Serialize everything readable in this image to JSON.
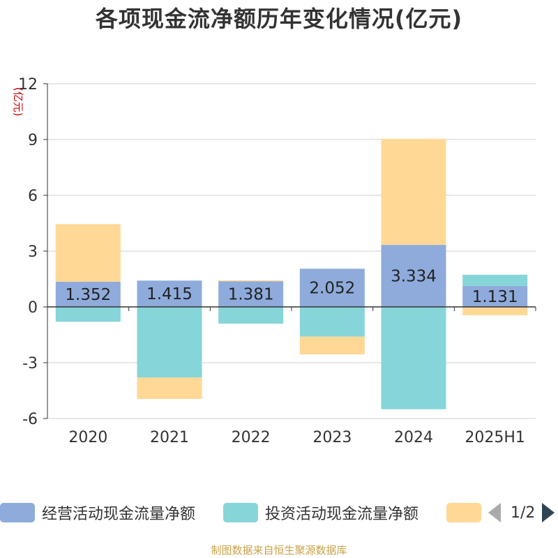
{
  "title": "各项现金流净额历年变化情况(亿元)",
  "unit": "(亿元)",
  "source": "制图数据来自恒生聚源数据库",
  "legend": {
    "items": [
      {
        "label": "经营活动现金流量净额",
        "color": "#8eabdb"
      },
      {
        "label": "投资活动现金流量净额",
        "color": "#86d5d8"
      },
      {
        "label": "",
        "color": "#ffd896"
      }
    ],
    "page": "1/2"
  },
  "chart_data": {
    "type": "bar",
    "stacked": true,
    "categories": [
      "2020",
      "2021",
      "2022",
      "2023",
      "2024",
      "2025H1"
    ],
    "ylim": [
      -6,
      12
    ],
    "yticks": [
      -6,
      -3,
      0,
      3,
      6,
      9,
      12
    ],
    "grid": true,
    "legend_position": "bottom",
    "series": [
      {
        "name": "经营活动现金流量净额",
        "color": "#8eabdb",
        "values": [
          1.352,
          1.415,
          1.381,
          2.052,
          3.334,
          1.131
        ],
        "labels": [
          "1.352",
          "1.415",
          "1.381",
          "2.052",
          "3.334",
          "1.131"
        ]
      },
      {
        "name": "投资活动现金流量净额",
        "color": "#86d5d8",
        "values": [
          -0.8,
          -3.8,
          -0.9,
          -1.6,
          -5.5,
          0.6
        ]
      },
      {
        "color": "#ffd896",
        "values": [
          3.1,
          -1.15,
          0.05,
          -0.95,
          5.7,
          -0.45
        ]
      }
    ]
  }
}
